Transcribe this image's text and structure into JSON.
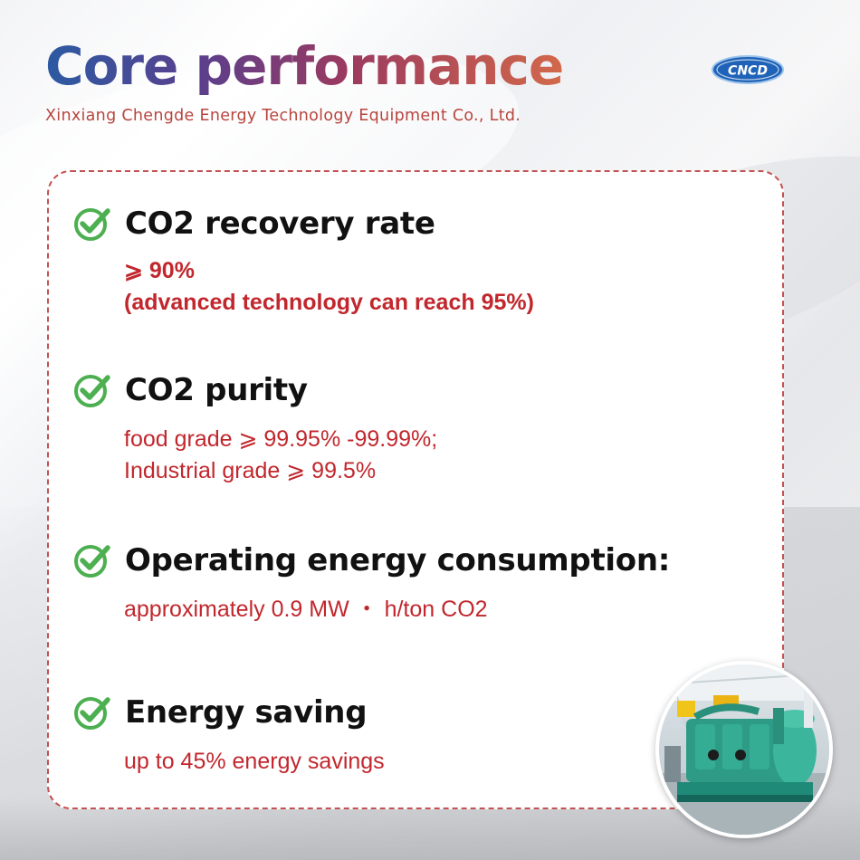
{
  "header": {
    "title": "Core performance",
    "subtitle": "Xinxiang Chengde Energy Technology Equipment Co., Ltd.",
    "logo_text": "CNCD"
  },
  "features": [
    {
      "title": "CO2 recovery rate",
      "lines": [
        "⩾ 90%",
        "(advanced technology can reach 95%)"
      ]
    },
    {
      "title": "CO2 purity",
      "lines": [
        "food grade ⩾ 99.95% -99.99%;",
        "Industrial grade ⩾ 99.5%"
      ]
    },
    {
      "title": "Operating energy consumption:",
      "lines": [
        "approximately 0.9 MW ・ h/ton CO2"
      ]
    },
    {
      "title": "Energy saving",
      "lines": [
        "up to 45% energy savings"
      ]
    }
  ],
  "icons": {
    "check": "check-circle-icon",
    "logo": "cncd-logo"
  },
  "colors": {
    "accent_red": "#c1272d",
    "check_green": "#4caf50",
    "border_dashed": "#c45252",
    "logo_blue": "#1f63b8"
  }
}
